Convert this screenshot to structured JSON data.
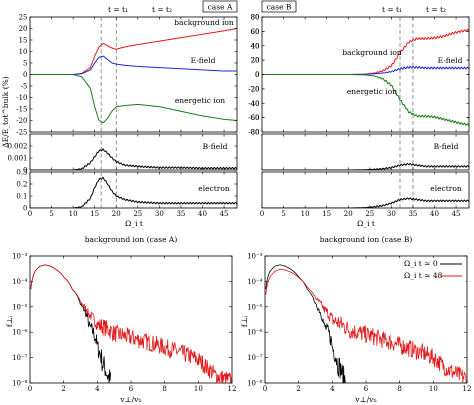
{
  "chart_data": [
    {
      "type": "line",
      "panel": "case A — energy change",
      "title": "case A",
      "xlabel": "",
      "ylabel": "ΔE/E_tot^bulk (%)",
      "xlim": [
        0,
        48
      ],
      "ylim": [
        -25,
        25
      ],
      "yticks": [
        -25,
        -20,
        -15,
        -10,
        -5,
        0,
        5,
        10,
        15,
        20,
        25
      ],
      "xticks": [
        0,
        5,
        10,
        15,
        20,
        25,
        30,
        35,
        40,
        45
      ],
      "vlines": [
        {
          "x": 16.5,
          "label": "t = t₁"
        },
        {
          "x": 20,
          "label": "t = t₂"
        }
      ],
      "series": [
        {
          "name": "background ion",
          "color": "#e31a1c",
          "x": [
            0,
            10,
            12,
            14,
            15,
            16,
            17,
            18,
            19,
            20,
            22,
            25,
            30,
            35,
            40,
            45,
            48
          ],
          "y": [
            0,
            0,
            0.5,
            3,
            8,
            12,
            13.5,
            12.5,
            11.5,
            11,
            12,
            13,
            14.5,
            16,
            17.5,
            19,
            20
          ]
        },
        {
          "name": "E-field",
          "color": "#1f2ad6",
          "x": [
            0,
            10,
            12,
            14,
            15,
            16,
            17,
            18,
            19,
            20,
            22,
            25,
            30,
            35,
            40,
            45,
            48
          ],
          "y": [
            0,
            0,
            0.3,
            2,
            5,
            7.5,
            8,
            6.5,
            5,
            4.5,
            4,
            3.5,
            3,
            2.5,
            2,
            1.5,
            1.5
          ]
        },
        {
          "name": "energetic ion",
          "color": "#1a7a1a",
          "x": [
            0,
            10,
            12,
            14,
            15,
            16,
            17,
            18,
            19,
            20,
            22,
            25,
            30,
            35,
            40,
            45,
            48
          ],
          "y": [
            0,
            0,
            -1,
            -6,
            -14,
            -20,
            -21,
            -19,
            -16,
            -14,
            -13.5,
            -13,
            -14,
            -16,
            -18,
            -19.5,
            -20
          ]
        }
      ],
      "annotations": [
        "background ion",
        "E-field",
        "energetic ion"
      ]
    },
    {
      "type": "line",
      "panel": "case A — B-field",
      "xlim": [
        0,
        48
      ],
      "ylim": [
        0,
        0.003
      ],
      "yticks": [
        0,
        0.001,
        0.002
      ],
      "series": [
        {
          "name": "B-field",
          "color": "#000000",
          "x": [
            0,
            10,
            12,
            14,
            15,
            16,
            17,
            18,
            19,
            20,
            22,
            25,
            30,
            35,
            40,
            45,
            48
          ],
          "y": [
            0,
            0,
            0.0001,
            0.0006,
            0.0011,
            0.0016,
            0.0017,
            0.0014,
            0.001,
            0.0007,
            0.0004,
            0.0003,
            0.0002,
            0.0002,
            0.00015,
            0.00015,
            0.00015
          ]
        }
      ],
      "annotations": [
        "B-field"
      ]
    },
    {
      "type": "line",
      "panel": "case A — electron",
      "xlabel": "Ω_i t",
      "xlim": [
        0,
        48
      ],
      "ylim": [
        0,
        0.3
      ],
      "yticks": [
        0,
        0.1,
        0.2,
        0.3
      ],
      "series": [
        {
          "name": "electron",
          "color": "#000000",
          "x": [
            0,
            10,
            12,
            14,
            15,
            16,
            17,
            18,
            19,
            20,
            22,
            25,
            30,
            35,
            40,
            45,
            48
          ],
          "y": [
            0,
            0,
            0.01,
            0.08,
            0.17,
            0.24,
            0.25,
            0.2,
            0.14,
            0.1,
            0.07,
            0.05,
            0.04,
            0.04,
            0.04,
            0.04,
            0.04
          ]
        }
      ],
      "annotations": [
        "electron"
      ]
    },
    {
      "type": "line",
      "panel": "case B — energy change",
      "title": "case B",
      "xlim": [
        0,
        48
      ],
      "ylim": [
        -80,
        80
      ],
      "yticks": [
        -80,
        -60,
        -40,
        -20,
        0,
        20,
        40,
        60,
        80
      ],
      "xticks": [
        0,
        5,
        10,
        15,
        20,
        25,
        30,
        35,
        40,
        45
      ],
      "vlines": [
        {
          "x": 32,
          "label": "t = t₁"
        },
        {
          "x": 35,
          "label": "t = t₂"
        }
      ],
      "series": [
        {
          "name": "background ion",
          "color": "#e31a1c",
          "x": [
            0,
            20,
            24,
            26,
            28,
            30,
            32,
            34,
            36,
            38,
            40,
            42,
            44,
            46,
            48
          ],
          "y": [
            0,
            0,
            0.5,
            2,
            5,
            12,
            30,
            45,
            50,
            50,
            51,
            53,
            57,
            60,
            62
          ]
        },
        {
          "name": "E-field",
          "color": "#1f2ad6",
          "x": [
            0,
            20,
            24,
            26,
            28,
            30,
            32,
            34,
            36,
            38,
            40,
            42,
            44,
            46,
            48
          ],
          "y": [
            0,
            0,
            0.3,
            1,
            2,
            4,
            8,
            10,
            10,
            9,
            9,
            9,
            9,
            9,
            9
          ]
        },
        {
          "name": "energetic ion",
          "color": "#1a7a1a",
          "x": [
            0,
            20,
            24,
            26,
            28,
            30,
            32,
            34,
            36,
            38,
            40,
            42,
            44,
            46,
            48
          ],
          "y": [
            0,
            0,
            -0.5,
            -2,
            -6,
            -15,
            -35,
            -52,
            -58,
            -58,
            -59,
            -62,
            -65,
            -68,
            -70
          ]
        }
      ],
      "annotations": [
        "background ion",
        "E-field",
        "energetic ion"
      ]
    },
    {
      "type": "line",
      "panel": "case B — B-field",
      "xlim": [
        0,
        48
      ],
      "ylim": [
        0,
        0.003
      ],
      "series": [
        {
          "name": "B-field",
          "color": "#000000",
          "x": [
            0,
            20,
            24,
            26,
            28,
            30,
            32,
            34,
            36,
            38,
            40,
            42,
            44,
            46,
            48
          ],
          "y": [
            0,
            0,
            2e-05,
            6e-05,
            0.0001,
            0.0002,
            0.0004,
            0.0005,
            0.0004,
            0.0003,
            0.0003,
            0.0003,
            0.0003,
            0.0003,
            0.0003
          ]
        }
      ],
      "annotations": [
        "B-field"
      ]
    },
    {
      "type": "line",
      "panel": "case B — electron",
      "xlabel": "Ω_i t",
      "xlim": [
        0,
        48
      ],
      "ylim": [
        0,
        0.3
      ],
      "series": [
        {
          "name": "electron",
          "color": "#000000",
          "x": [
            0,
            20,
            24,
            26,
            28,
            30,
            32,
            34,
            36,
            38,
            40,
            42,
            44,
            46,
            48
          ],
          "y": [
            0,
            0,
            0.003,
            0.01,
            0.02,
            0.04,
            0.07,
            0.08,
            0.07,
            0.06,
            0.06,
            0.06,
            0.06,
            0.06,
            0.06
          ]
        }
      ],
      "annotations": [
        "electron"
      ]
    },
    {
      "type": "line",
      "panel": "background ion (case A)",
      "title": "background ion (case A)",
      "xlabel": "v⊥/vₜᵢ",
      "ylabel": "f⊥ᵢ",
      "yscale": "log",
      "xlim": [
        0,
        12
      ],
      "ylim": [
        1e-08,
        0.001
      ],
      "xticks": [
        0,
        2,
        4,
        6,
        8,
        10,
        12
      ],
      "yticks": [
        "10⁻³",
        "10⁻⁴",
        "10⁻⁵",
        "10⁻⁶",
        "10⁻⁷",
        "10⁻⁸"
      ],
      "series": [
        {
          "name": "Ω_i t ≃ 0",
          "color": "#000000",
          "x": [
            0.05,
            0.3,
            0.6,
            0.9,
            1.2,
            1.6,
            2.0,
            2.5,
            3.0,
            3.5,
            4.0,
            4.3,
            4.6,
            4.8
          ],
          "y": [
            5e-05,
            0.00025,
            0.0004,
            0.00045,
            0.0004,
            0.00028,
            0.00015,
            5e-05,
            1.2e-05,
            1.8e-06,
            2.5e-07,
            6e-08,
            2e-08,
            1.2e-08
          ]
        },
        {
          "name": "Ω_i t ≃ 48",
          "color": "#e31a1c",
          "x": [
            0.05,
            0.3,
            0.6,
            0.9,
            1.2,
            1.6,
            2.0,
            2.5,
            3.0,
            3.5,
            4.0,
            5.0,
            6.0,
            7.0,
            8.0,
            9.0,
            10.0,
            10.5,
            11.0,
            11.5,
            12.0
          ],
          "y": [
            5e-05,
            0.00025,
            0.0004,
            0.00045,
            0.0004,
            0.00028,
            0.00015,
            5e-05,
            1.5e-05,
            5e-06,
            2e-06,
            9e-07,
            6e-07,
            4e-07,
            2.5e-07,
            1.5e-07,
            8e-08,
            4e-08,
            2e-08,
            1.5e-08,
            1.2e-08
          ]
        }
      ]
    },
    {
      "type": "line",
      "panel": "background ion (case B)",
      "title": "background ion (case B)",
      "xlabel": "v⊥/vₜᵢ",
      "ylabel": "f⊥ᵢ",
      "yscale": "log",
      "xlim": [
        0,
        12
      ],
      "ylim": [
        1e-08,
        0.001
      ],
      "xticks": [
        0,
        2,
        4,
        6,
        8,
        10,
        12
      ],
      "yticks": [
        "10⁻³",
        "10⁻⁴",
        "10⁻⁵",
        "10⁻⁶",
        "10⁻⁷",
        "10⁻⁸"
      ],
      "legend": {
        "position": "top-right",
        "entries": [
          "Ω_i t ≃ 0",
          "Ω_i t ≃ 48"
        ]
      },
      "series": [
        {
          "name": "Ω_i t ≃ 0",
          "color": "#000000",
          "x": [
            0.05,
            0.3,
            0.6,
            0.9,
            1.2,
            1.6,
            2.0,
            2.5,
            3.0,
            3.5,
            4.0,
            4.3,
            4.6,
            4.8
          ],
          "y": [
            5e-05,
            0.00025,
            0.0004,
            0.00045,
            0.0004,
            0.00028,
            0.00015,
            5e-05,
            1.2e-05,
            1.8e-06,
            2.5e-07,
            6e-08,
            2e-08,
            1.2e-08
          ]
        },
        {
          "name": "Ω_i t ≃ 48",
          "color": "#e31a1c",
          "x": [
            0.05,
            0.3,
            0.6,
            0.9,
            1.2,
            1.6,
            2.0,
            2.5,
            3.0,
            3.5,
            4.0,
            5.0,
            6.0,
            7.0,
            8.0,
            9.0,
            10.0,
            10.5,
            11.0,
            11.5,
            12.0
          ],
          "y": [
            3e-05,
            0.00015,
            0.00025,
            0.0003,
            0.00028,
            0.00022,
            0.00014,
            6e-05,
            2.2e-05,
            8e-06,
            3e-06,
            1.2e-06,
            8e-07,
            5e-07,
            3e-07,
            1.8e-07,
            1e-07,
            5e-08,
            3e-08,
            2e-08,
            1.5e-08
          ]
        }
      ]
    }
  ]
}
